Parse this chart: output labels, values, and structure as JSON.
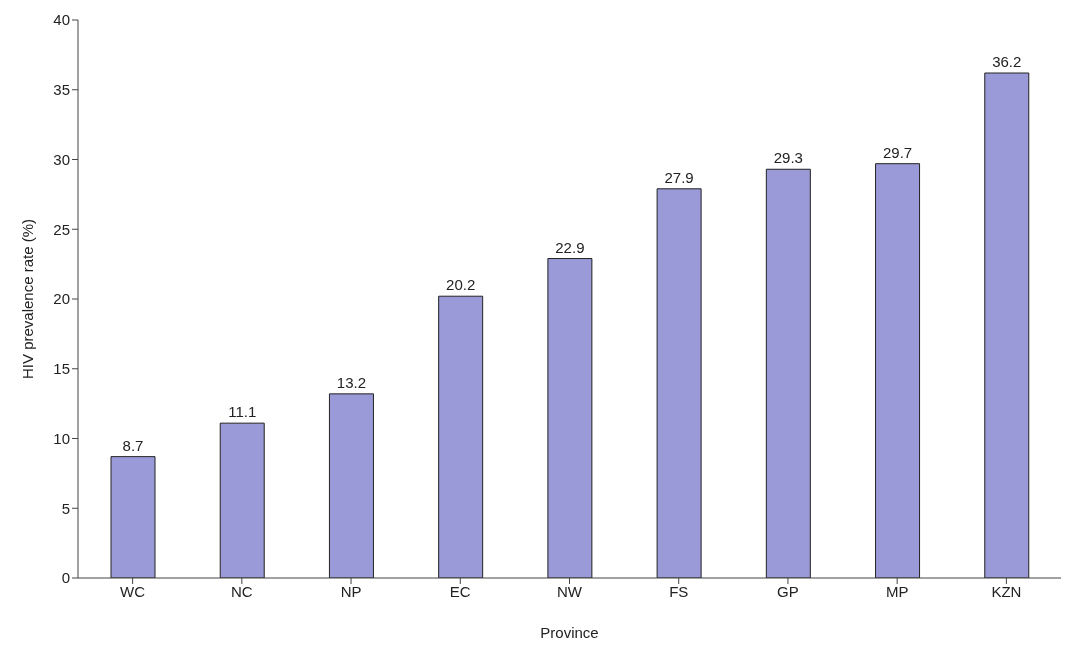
{
  "chart_data": {
    "type": "bar",
    "xlabel": "Province",
    "ylabel": "HIV prevalence rate (%)",
    "categories": [
      "WC",
      "NC",
      "NP",
      "EC",
      "NW",
      "FS",
      "GP",
      "MP",
      "KZN"
    ],
    "values": [
      8.7,
      11.1,
      13.2,
      20.2,
      22.9,
      27.9,
      29.3,
      29.7,
      36.2
    ],
    "color": "#9a9ad8",
    "ylim": [
      0,
      40
    ],
    "yticks": [
      0,
      5,
      10,
      15,
      20,
      25,
      30,
      35,
      40
    ],
    "grid": false,
    "data_labels": true
  }
}
